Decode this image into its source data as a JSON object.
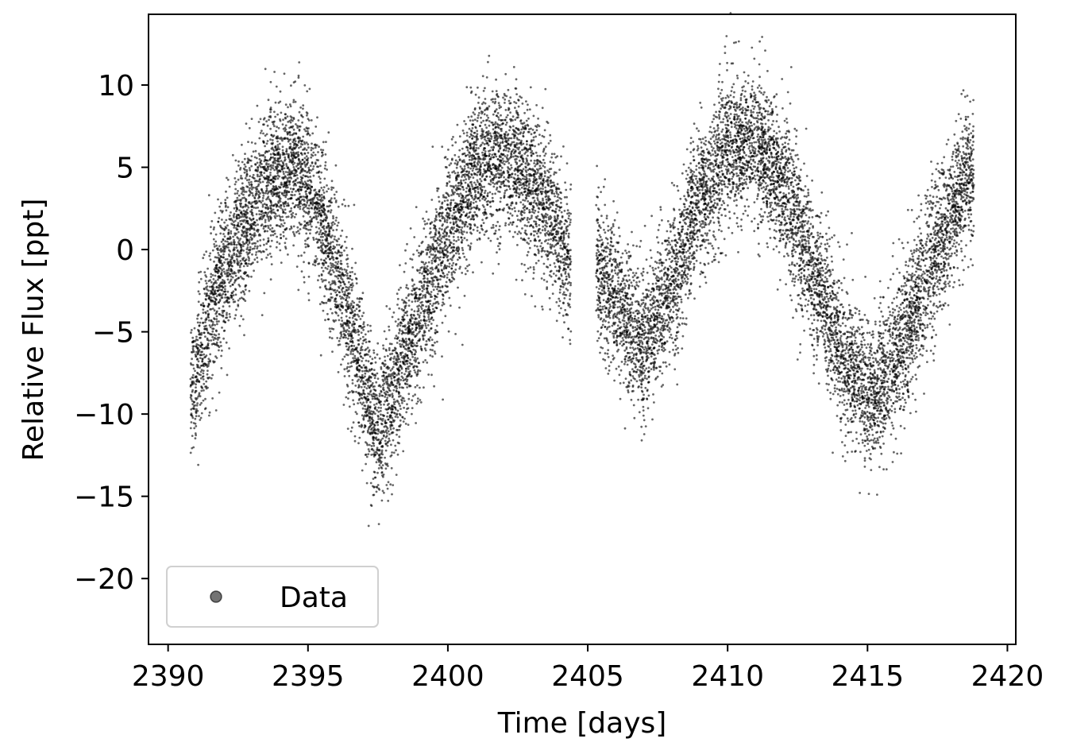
{
  "chart_data": {
    "type": "scatter",
    "xlabel": "Time [days]",
    "ylabel": "Relative Flux [ppt]",
    "xlim": [
      2389.3,
      2420.3
    ],
    "ylim": [
      -24,
      14.3
    ],
    "xticks": [
      2390,
      2395,
      2400,
      2405,
      2410,
      2415,
      2420
    ],
    "yticks": [
      10,
      5,
      0,
      -5,
      -10,
      -15,
      -20
    ],
    "ytick_labels": [
      "10",
      "5",
      "0",
      "−5",
      "−10",
      "−15",
      "−20"
    ],
    "grid": false,
    "legend": {
      "placement": "lower-left",
      "entries": [
        {
          "label": "Data",
          "color": "#000000"
        }
      ]
    },
    "series": [
      {
        "name": "Data",
        "color": "#000000",
        "segments": [
          {
            "x_start": 2390.8,
            "x_end": 2404.4
          },
          {
            "x_start": 2405.3,
            "x_end": 2418.8
          }
        ],
        "trend_points": {
          "x": [
            2390.8,
            2391.5,
            2392.3,
            2393.5,
            2394.5,
            2395.3,
            2396.0,
            2397.0,
            2397.5,
            2398.0,
            2398.5,
            2399.2,
            2400.0,
            2401.0,
            2402.0,
            2403.0,
            2403.7,
            2404.4,
            2405.3,
            2406.0,
            2407.0,
            2408.0,
            2409.0,
            2410.0,
            2411.0,
            2412.0,
            2413.0,
            2414.0,
            2415.0,
            2416.0,
            2417.0,
            2418.0,
            2418.8
          ],
          "y": [
            -9,
            -4,
            0,
            4,
            5,
            3,
            -1,
            -8,
            -11,
            -9,
            -6,
            -3,
            1,
            5,
            5.5,
            4,
            2,
            -1,
            -1,
            -3,
            -6,
            -2,
            3,
            6,
            6.5,
            4,
            -1,
            -6,
            -9,
            -7,
            -2,
            2,
            5
          ]
        },
        "scatter_ppt": 2.2,
        "n_points": 14000
      }
    ]
  }
}
